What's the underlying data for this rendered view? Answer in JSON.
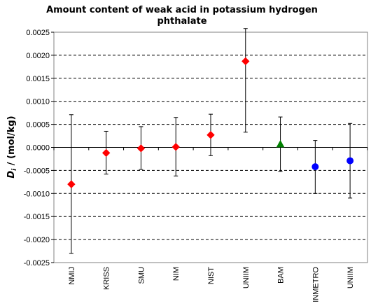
{
  "chart_data": {
    "type": "scatter",
    "title_line1": "Amount content of weak acid in potassium hydrogen",
    "title_line2": "phthalate",
    "ylabel_symbol": "Di",
    "ylabel_main": "D",
    "ylabel_sub": "i",
    "ylabel_rest": " / (mol/kg)",
    "xlabel": "",
    "ylim": [
      -0.0025,
      0.0025
    ],
    "ytick_step": 0.0005,
    "yticks": [
      "0.0025",
      "0.0020",
      "0.0015",
      "0.0010",
      "0.0005",
      "0.0000",
      "-0.0005",
      "-0.0010",
      "-0.0015",
      "-0.0020",
      "-0.0025"
    ],
    "grid": "horizontal-dashed",
    "categories": [
      "NMIJ",
      "KRISS",
      "SMU",
      "NIM",
      "NIST",
      "UNIIM",
      "BAM",
      "INMETRO",
      "UNIIM"
    ],
    "points": [
      {
        "label": "NMIJ",
        "value": -0.0008,
        "err_low": -0.0023,
        "err_high": 0.00071,
        "marker": "diamond",
        "color": "#ff0000"
      },
      {
        "label": "KRISS",
        "value": -0.00012,
        "err_low": -0.00058,
        "err_high": 0.00035,
        "marker": "diamond",
        "color": "#ff0000"
      },
      {
        "label": "SMU",
        "value": -2e-05,
        "err_low": -0.00048,
        "err_high": 0.00045,
        "marker": "diamond",
        "color": "#ff0000"
      },
      {
        "label": "NIM",
        "value": 1e-05,
        "err_low": -0.00062,
        "err_high": 0.00065,
        "marker": "diamond",
        "color": "#ff0000"
      },
      {
        "label": "NIST",
        "value": 0.00027,
        "err_low": -0.00018,
        "err_high": 0.00072,
        "marker": "diamond",
        "color": "#ff0000"
      },
      {
        "label": "UNIIM",
        "value": 0.00187,
        "err_low": 0.00033,
        "err_high": 0.00258,
        "marker": "diamond",
        "color": "#ff0000"
      },
      {
        "label": "BAM",
        "value": 7e-05,
        "err_low": -0.00052,
        "err_high": 0.00066,
        "marker": "triangle",
        "color": "#008000"
      },
      {
        "label": "INMETRO",
        "value": -0.00042,
        "err_low": -0.001,
        "err_high": 0.00015,
        "marker": "circle",
        "color": "#0000ff"
      },
      {
        "label": "UNIIM",
        "value": -0.00029,
        "err_low": -0.0011,
        "err_high": 0.00052,
        "marker": "circle",
        "color": "#0000ff"
      }
    ]
  }
}
